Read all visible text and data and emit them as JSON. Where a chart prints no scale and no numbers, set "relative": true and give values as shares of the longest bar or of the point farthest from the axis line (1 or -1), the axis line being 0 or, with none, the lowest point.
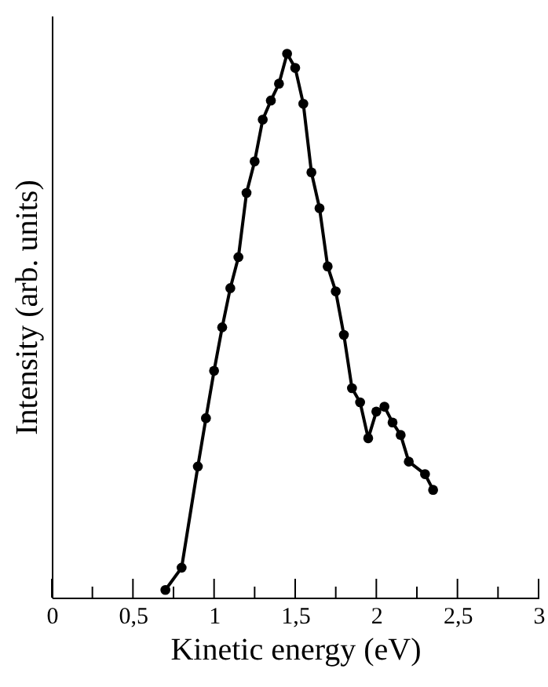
{
  "chart_data": {
    "type": "line",
    "xlabel": "Kinetic energy  (eV)",
    "ylabel": "Intensity  (arb. units)",
    "relative": true,
    "marker": "circle",
    "line_style": "solid",
    "grid": false,
    "x": [
      0.7,
      0.8,
      0.9,
      0.95,
      1.0,
      1.05,
      1.1,
      1.15,
      1.2,
      1.25,
      1.3,
      1.35,
      1.4,
      1.45,
      1.5,
      1.55,
      1.6,
      1.65,
      1.7,
      1.75,
      1.8,
      1.85,
      1.9,
      1.95,
      2.0,
      2.05,
      2.1,
      2.15,
      2.2,
      2.3,
      2.35
    ],
    "series": [
      {
        "color": "#000000",
        "values": [
          0.014,
          0.055,
          0.241,
          0.33,
          0.417,
          0.497,
          0.569,
          0.626,
          0.744,
          0.802,
          0.879,
          0.914,
          0.945,
          1,
          0.974,
          0.908,
          0.782,
          0.716,
          0.609,
          0.563,
          0.483,
          0.385,
          0.359,
          0.293,
          0.342,
          0.351,
          0.322,
          0.299,
          0.25,
          0.227,
          0.198
        ]
      }
    ],
    "xlim": [
      0,
      3
    ],
    "xticks": [
      0,
      {
        "value": 0.25,
        "label": null
      },
      {
        "value": 0.5,
        "label": "0,5"
      },
      {
        "value": 0.75,
        "label": null
      },
      1,
      {
        "value": 1.25,
        "label": null
      },
      {
        "value": 1.5,
        "label": "1,5"
      },
      {
        "value": 1.75,
        "label": null
      },
      2,
      {
        "value": 2.25,
        "label": null
      },
      {
        "value": 2.5,
        "label": "2,5"
      },
      {
        "value": 2.75,
        "label": null
      },
      3
    ]
  }
}
